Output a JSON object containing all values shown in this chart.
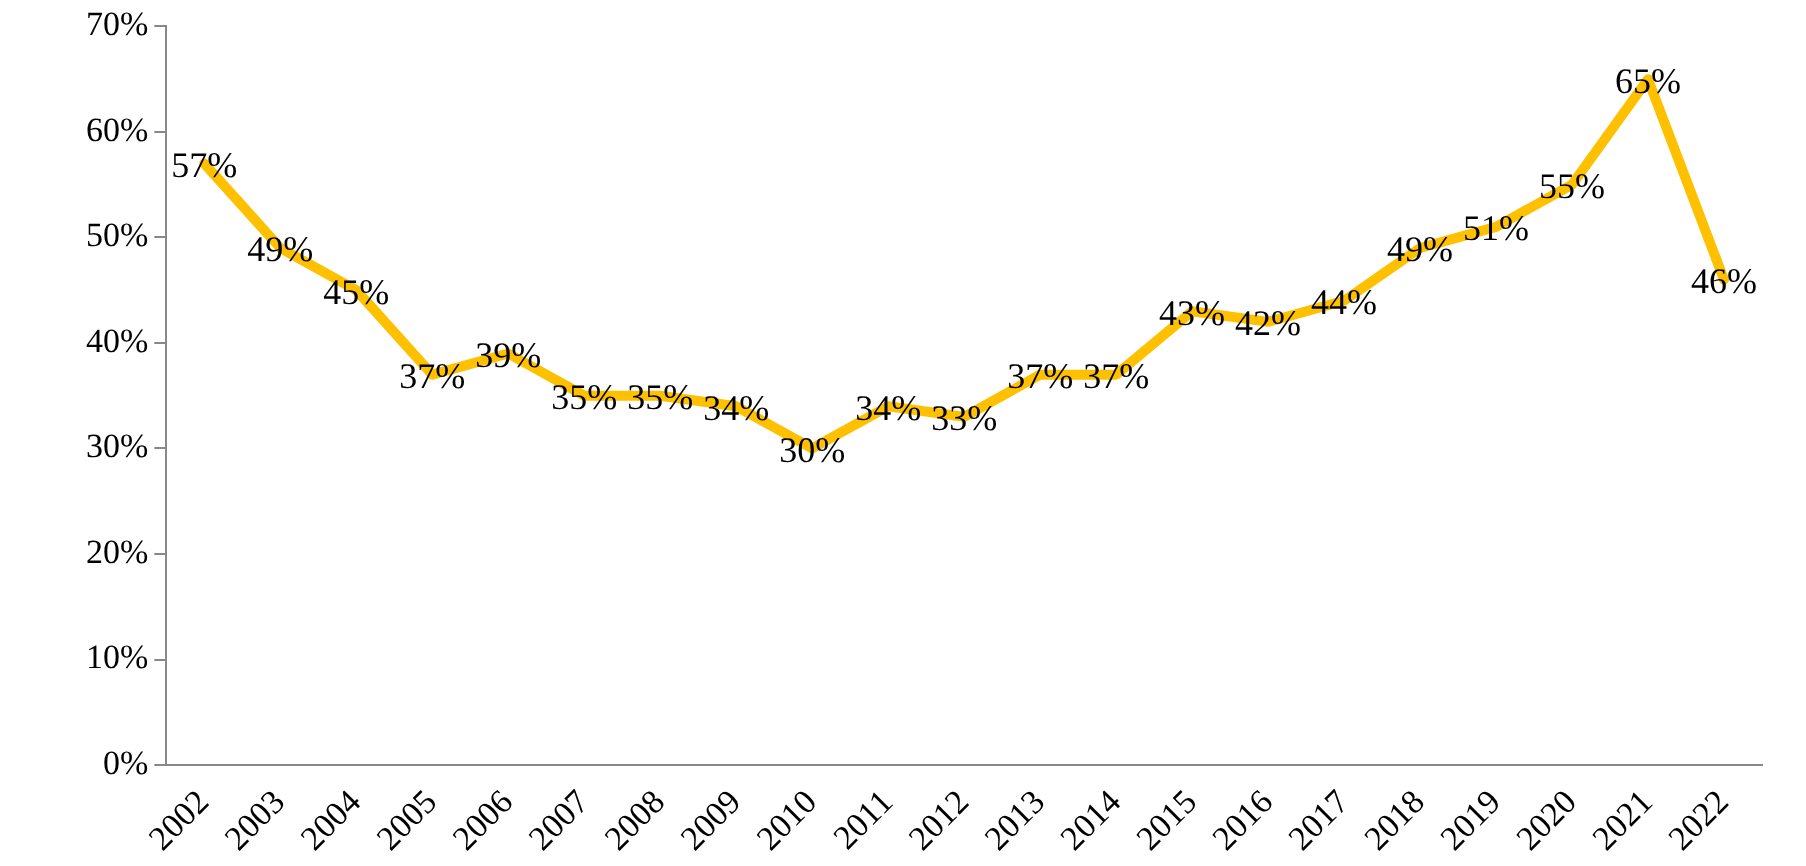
{
  "chart_data": {
    "type": "line",
    "categories": [
      "2002",
      "2003",
      "2004",
      "2005",
      "2006",
      "2007",
      "2008",
      "2009",
      "2010",
      "2011",
      "2012",
      "2013",
      "2014",
      "2015",
      "2016",
      "2017",
      "2018",
      "2019",
      "2020",
      "2021",
      "2022"
    ],
    "series": [
      {
        "color": "#ffc000",
        "values": [
          57,
          49,
          45,
          37,
          39,
          35,
          35,
          34,
          30,
          34,
          33,
          37,
          37,
          43,
          42,
          44,
          49,
          51,
          55,
          65,
          46
        ],
        "value_labels": [
          "57%",
          "49%",
          "45%",
          "37%",
          "39%",
          "35%",
          "35%",
          "34%",
          "30%",
          "34%",
          "33%",
          "37%",
          "37%",
          "43%",
          "42%",
          "44%",
          "49%",
          "51%",
          "55%",
          "65%",
          "46%"
        ]
      }
    ],
    "ylim": [
      0,
      70
    ],
    "yticks": [
      {
        "value": 0,
        "label": "0%"
      },
      {
        "value": 10,
        "label": "10%"
      },
      {
        "value": 20,
        "label": "20%"
      },
      {
        "value": 30,
        "label": "30%"
      },
      {
        "value": 40,
        "label": "40%"
      },
      {
        "value": 50,
        "label": "50%"
      },
      {
        "value": 60,
        "label": "60%"
      },
      {
        "value": 70,
        "label": "70%"
      }
    ],
    "grid": false,
    "legend": false,
    "marker": "none",
    "line_style": "solid"
  }
}
